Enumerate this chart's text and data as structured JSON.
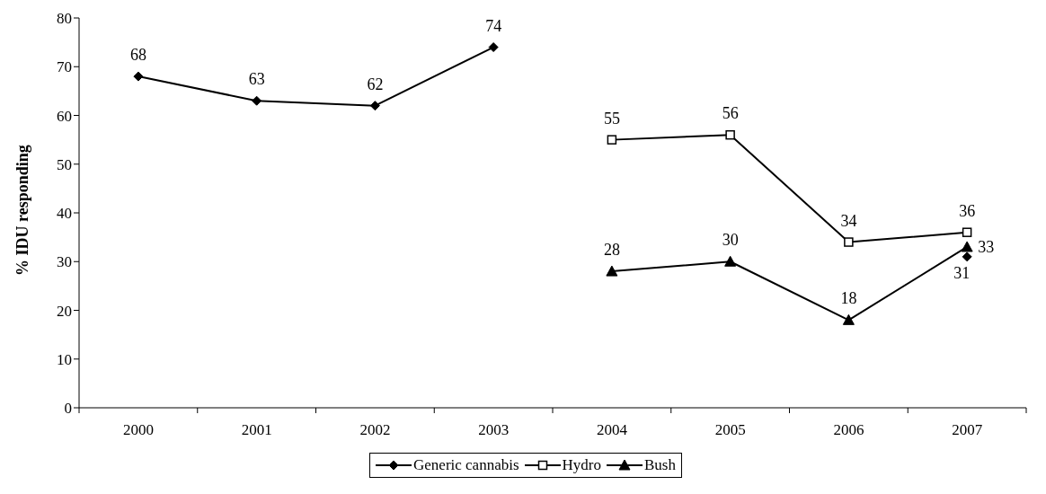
{
  "chart_data": {
    "type": "line",
    "ylabel": "% IDU responding",
    "categories": [
      "2000",
      "2001",
      "2002",
      "2003",
      "2004",
      "2005",
      "2006",
      "2007"
    ],
    "series": [
      {
        "name": "Generic cannabis",
        "color": "#000000",
        "marker": "diamond",
        "values": [
          68,
          63,
          62,
          74,
          null,
          null,
          null,
          31
        ]
      },
      {
        "name": "Hydro",
        "color": "#000000",
        "marker": "square",
        "values": [
          null,
          null,
          null,
          null,
          55,
          56,
          34,
          36
        ]
      },
      {
        "name": "Bush",
        "color": "#000000",
        "marker": "triangle",
        "values": [
          null,
          null,
          null,
          null,
          28,
          30,
          18,
          33
        ]
      }
    ],
    "ylim": [
      0,
      80
    ],
    "yticks": [
      0,
      10,
      20,
      30,
      40,
      50,
      60,
      70,
      80
    ],
    "legend": "bottom",
    "data_labels": true,
    "line_style": "solid"
  }
}
